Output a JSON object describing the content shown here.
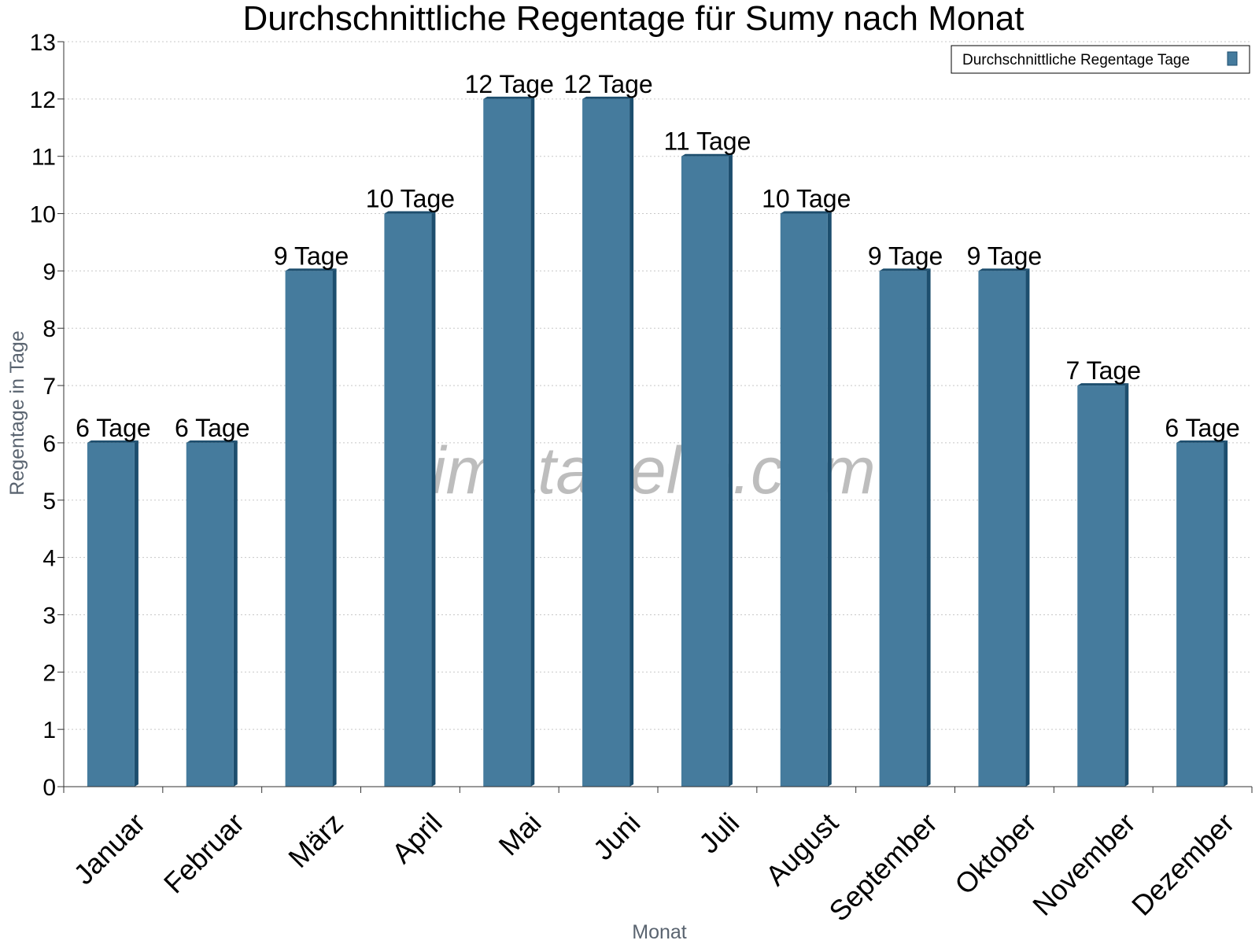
{
  "chart_data": {
    "type": "bar",
    "title": "Durchschnittliche Regentage für Sumy nach Monat",
    "xlabel": "Monat",
    "ylabel": "Regentage in Tage",
    "ylim": [
      0,
      13
    ],
    "yticks": [
      0,
      1,
      2,
      3,
      4,
      5,
      6,
      7,
      8,
      9,
      10,
      11,
      12,
      13
    ],
    "grid": true,
    "legend_position": "top-right",
    "categories": [
      "Januar",
      "Februar",
      "März",
      "April",
      "Mai",
      "Juni",
      "Juli",
      "August",
      "September",
      "Oktober",
      "November",
      "Dezember"
    ],
    "series": [
      {
        "name": "Durchschnittliche Regentage Tage",
        "values": [
          6,
          6,
          9,
          10,
          12,
          12,
          11,
          10,
          9,
          9,
          7,
          6
        ],
        "labels": [
          "6 Tage",
          "6 Tage",
          "9 Tage",
          "10 Tage",
          "12 Tage",
          "12 Tage",
          "11 Tage",
          "10 Tage",
          "9 Tage",
          "9 Tage",
          "7 Tage",
          "6 Tage"
        ],
        "color": "#457b9d",
        "color_side": "#1d4e6e"
      }
    ],
    "watermark": "klimatabelle.com"
  }
}
